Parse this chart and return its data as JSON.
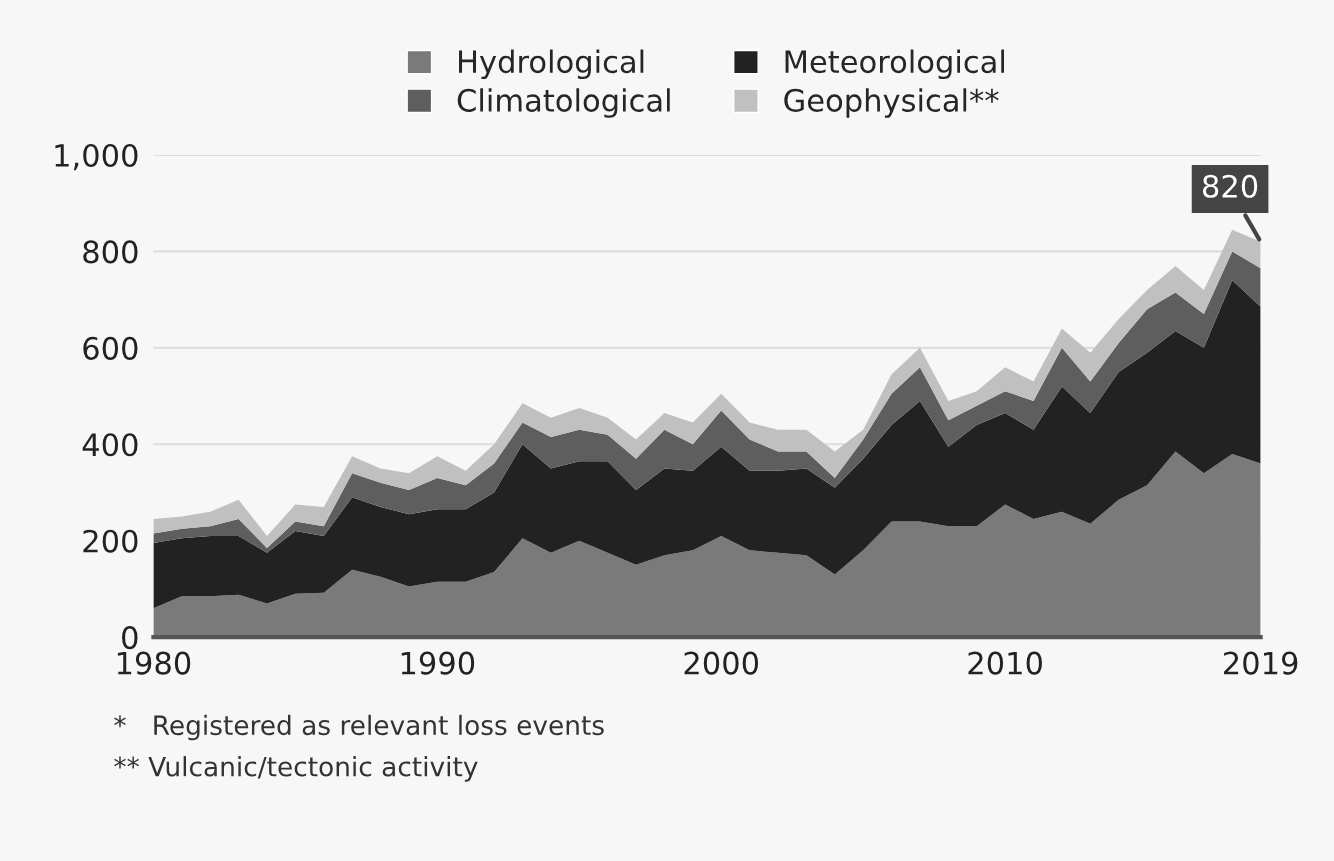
{
  "chart_data": {
    "type": "area",
    "stacked": true,
    "x": [
      1980,
      1981,
      1982,
      1983,
      1984,
      1985,
      1986,
      1987,
      1988,
      1989,
      1990,
      1991,
      1992,
      1993,
      1994,
      1995,
      1996,
      1997,
      1998,
      1999,
      2000,
      2001,
      2002,
      2003,
      2004,
      2005,
      2006,
      2007,
      2008,
      2009,
      2010,
      2011,
      2012,
      2013,
      2014,
      2015,
      2016,
      2017,
      2018,
      2019
    ],
    "series": [
      {
        "name": "Hydrological",
        "color": "#7a7a7a",
        "values": [
          60,
          85,
          85,
          88,
          70,
          90,
          92,
          140,
          125,
          105,
          115,
          115,
          135,
          205,
          175,
          200,
          175,
          150,
          170,
          180,
          210,
          180,
          175,
          170,
          130,
          180,
          240,
          240,
          230,
          230,
          275,
          245,
          260,
          235,
          285,
          315,
          385,
          340,
          380,
          360
        ]
      },
      {
        "name": "Meteorological",
        "color": "#222222",
        "values": [
          135,
          120,
          125,
          122,
          105,
          130,
          118,
          150,
          145,
          150,
          150,
          150,
          165,
          195,
          175,
          165,
          190,
          155,
          180,
          165,
          185,
          165,
          170,
          180,
          180,
          190,
          200,
          250,
          165,
          210,
          190,
          185,
          260,
          230,
          265,
          275,
          250,
          260,
          360,
          325
        ]
      },
      {
        "name": "Climatological",
        "color": "#5e5e5e",
        "values": [
          20,
          20,
          20,
          35,
          10,
          20,
          20,
          50,
          50,
          50,
          65,
          50,
          60,
          45,
          65,
          65,
          55,
          65,
          80,
          55,
          75,
          65,
          40,
          35,
          20,
          40,
          65,
          70,
          55,
          40,
          45,
          60,
          80,
          65,
          60,
          90,
          80,
          70,
          60,
          80
        ]
      },
      {
        "name": "Geophysical**",
        "color": "#c0c0c0",
        "values": [
          30,
          25,
          30,
          40,
          25,
          35,
          40,
          35,
          30,
          35,
          45,
          30,
          40,
          40,
          40,
          45,
          35,
          40,
          35,
          45,
          35,
          35,
          45,
          45,
          55,
          20,
          40,
          40,
          40,
          30,
          50,
          40,
          40,
          60,
          50,
          40,
          55,
          50,
          45,
          55
        ]
      }
    ],
    "xlim": [
      1980,
      2019
    ],
    "xticks": [
      1980,
      1990,
      2000,
      2010,
      2019
    ],
    "ylim": [
      0,
      1000
    ],
    "yticks": [
      0,
      {
        "value": 200,
        "label": "200"
      },
      {
        "value": 400,
        "label": "400"
      },
      {
        "value": 600,
        "label": "600"
      },
      {
        "value": 800,
        "label": "800"
      },
      {
        "value": 1000,
        "label": "1,000"
      }
    ],
    "grid": "y",
    "legend": "top",
    "annotations": [
      {
        "text": "820",
        "x": 2019,
        "y": 820
      },
      "*   Registered as relevant loss events",
      "** Vulcanic/tectonic activity"
    ]
  }
}
